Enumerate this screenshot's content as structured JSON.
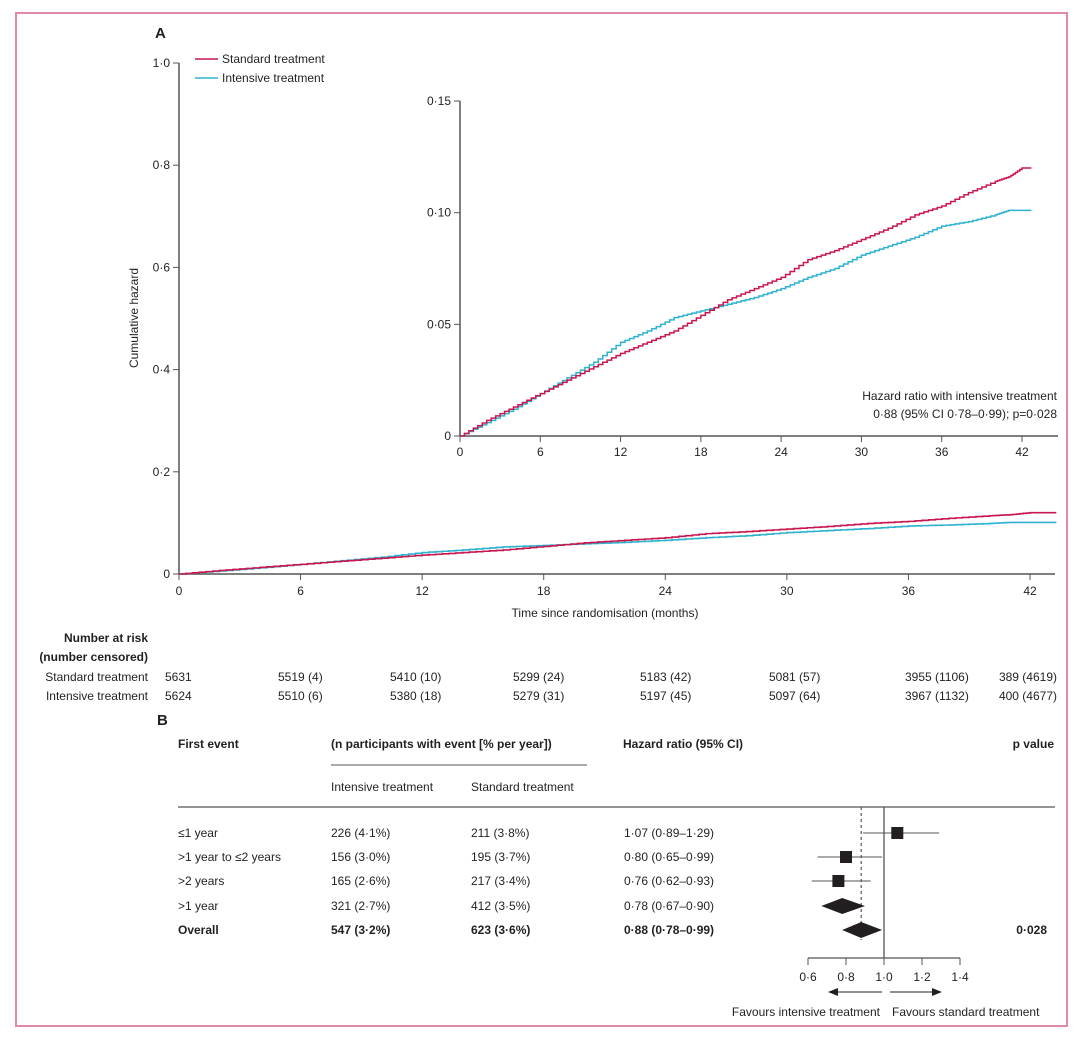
{
  "chart_data": [
    {
      "panel": "A",
      "type": "line",
      "title": "",
      "xlabel": "Time since randomisation (months)",
      "ylabel": "Cumulative hazard",
      "xlim": [
        0,
        44
      ],
      "ylim": [
        0,
        1.0
      ],
      "x_ticks": [
        0,
        6,
        12,
        18,
        24,
        30,
        36,
        42
      ],
      "x_tick_labels": [
        "0",
        "6",
        "12",
        "18",
        "24",
        "30",
        "36",
        "42"
      ],
      "y_ticks": [
        0,
        0.2,
        0.4,
        0.6,
        0.8,
        1.0
      ],
      "y_tick_labels": [
        "0",
        "0·2",
        "0·4",
        "0·6",
        "0·8",
        "1·0"
      ],
      "grid": false,
      "legend_position": "top-left",
      "series": [
        {
          "name": "Standard treatment",
          "color": "#c8174f",
          "x": [
            0,
            2,
            4,
            6,
            8,
            10,
            12,
            14,
            16,
            18,
            20,
            22,
            24,
            26,
            28,
            30,
            32,
            34,
            36,
            38,
            40,
            41,
            42,
            44
          ],
          "y": [
            0,
            0.007,
            0.013,
            0.019,
            0.025,
            0.031,
            0.037,
            0.042,
            0.047,
            0.054,
            0.061,
            0.066,
            0.071,
            0.079,
            0.083,
            0.088,
            0.093,
            0.099,
            0.103,
            0.109,
            0.114,
            0.116,
            0.12,
            0.12
          ]
        },
        {
          "name": "Intensive treatment",
          "color": "#2eb2cf",
          "x": [
            0,
            2,
            4,
            6,
            8,
            10,
            12,
            14,
            16,
            18,
            20,
            22,
            24,
            26,
            28,
            30,
            32,
            34,
            36,
            38,
            40,
            41,
            42,
            44
          ],
          "y": [
            0,
            0.006,
            0.012,
            0.019,
            0.026,
            0.033,
            0.042,
            0.047,
            0.053,
            0.056,
            0.059,
            0.062,
            0.066,
            0.071,
            0.075,
            0.081,
            0.085,
            0.089,
            0.094,
            0.096,
            0.099,
            0.101,
            0.101,
            0.101
          ]
        }
      ],
      "inset": {
        "xlim": [
          0,
          44
        ],
        "ylim": [
          0,
          0.15
        ],
        "x_ticks": [
          0,
          6,
          12,
          18,
          24,
          30,
          36,
          42
        ],
        "x_tick_labels": [
          "0",
          "6",
          "12",
          "18",
          "24",
          "30",
          "36",
          "42"
        ],
        "y_ticks": [
          0,
          0.05,
          0.1,
          0.15
        ],
        "y_tick_labels": [
          "0",
          "0·05",
          "0·10",
          "0·15"
        ],
        "annotation": [
          "Hazard ratio with intensive treatment",
          "0·88 (95% CI 0·78–0·99); p=0·028"
        ]
      },
      "number_at_risk": {
        "title_line1": "Number at risk",
        "title_line2": "(number censored)",
        "times": [
          0,
          6,
          12,
          18,
          24,
          30,
          36,
          42
        ],
        "rows": [
          {
            "label": "Standard treatment",
            "values": [
              "5631",
              "5519 (4)",
              "5410 (10)",
              "5299 (24)",
              "5183 (42)",
              "5081 (57)",
              "3955 (1106)",
              "389 (4619)"
            ]
          },
          {
            "label": "Intensive treatment",
            "values": [
              "5624",
              "5510 (6)",
              "5380 (18)",
              "5279 (31)",
              "5197 (45)",
              "5097 (64)",
              "3967 (1132)",
              "400 (4677)"
            ]
          }
        ]
      }
    },
    {
      "panel": "B",
      "type": "forest",
      "title": "",
      "xlim": [
        0.6,
        1.4
      ],
      "x_ticks": [
        0.6,
        0.8,
        1.0,
        1.2,
        1.4
      ],
      "x_tick_labels": [
        "0·6",
        "0·8",
        "1·0",
        "1·2",
        "1·4"
      ],
      "reference_line": 1.0,
      "overall_dotted_line": 0.88,
      "headers": {
        "first_event": "First event",
        "group": "(n participants with event [% per year])",
        "intensive": "Intensive treatment",
        "standard": "Standard treatment",
        "hr": "Hazard ratio (95% CI)",
        "p": "p value"
      },
      "rows": [
        {
          "label": "≤1 year",
          "intensive": "226 (4·1%)",
          "standard": "211 (3·8%)",
          "hr_text": "1·07 (0·89–1·29)",
          "hr": 1.07,
          "lo": 0.89,
          "hi": 1.29,
          "marker": "square",
          "bold": false,
          "p": ""
        },
        {
          "label": ">1 year to ≤2 years",
          "intensive": "156 (3·0%)",
          "standard": "195 (3·7%)",
          "hr_text": "0·80 (0·65–0·99)",
          "hr": 0.8,
          "lo": 0.65,
          "hi": 0.99,
          "marker": "square",
          "bold": false,
          "p": ""
        },
        {
          "label": ">2 years",
          "intensive": "165 (2·6%)",
          "standard": "217 (3·4%)",
          "hr_text": "0·76 (0·62–0·93)",
          "hr": 0.76,
          "lo": 0.62,
          "hi": 0.93,
          "marker": "square",
          "bold": false,
          "p": ""
        },
        {
          "label": ">1 year",
          "intensive": "321 (2·7%)",
          "standard": "412 (3·5%)",
          "hr_text": "0·78 (0·67–0·90)",
          "hr": 0.78,
          "lo": 0.67,
          "hi": 0.9,
          "marker": "diamond",
          "bold": false,
          "p": ""
        },
        {
          "label": "Overall",
          "intensive": "547 (3·2%)",
          "standard": "623 (3·6%)",
          "hr_text": "0·88 (0·78–0·99)",
          "hr": 0.88,
          "lo": 0.78,
          "hi": 0.99,
          "marker": "diamond",
          "bold": true,
          "p": "0·028"
        }
      ],
      "favours_left": "Favours intensive treatment",
      "favours_right": "Favours standard treatment"
    }
  ],
  "labels": {
    "panel_a": "A",
    "panel_b": "B"
  },
  "colors": {
    "standard": "#c8174f",
    "intensive": "#2eb2cf",
    "frame": "#e08aa4",
    "axis": "#555555"
  }
}
